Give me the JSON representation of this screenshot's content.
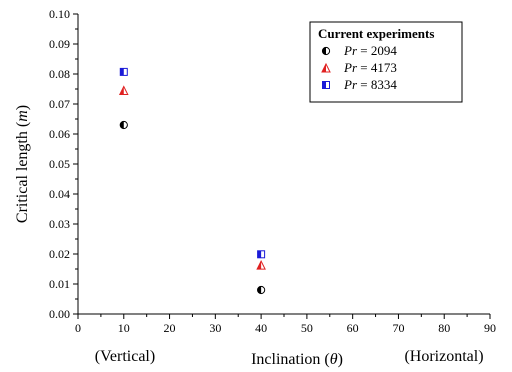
{
  "chart_data": {
    "type": "scatter",
    "x_axis": {
      "label_text": "Inclination (",
      "label_symbol": "θ",
      "label_close": ")",
      "min": 0,
      "max": 90,
      "ticks": [
        0,
        10,
        20,
        30,
        40,
        50,
        60,
        70,
        80,
        90
      ],
      "annotations": [
        "(Vertical)",
        "(Horizontal)"
      ]
    },
    "y_axis": {
      "label_text": "Critical length (",
      "label_symbol": "m",
      "label_close": ")",
      "min": 0,
      "max": 0.1,
      "ticks": [
        "0.00",
        "0.01",
        "0.02",
        "0.03",
        "0.04",
        "0.05",
        "0.06",
        "0.07",
        "0.08",
        "0.09",
        "0.10"
      ]
    },
    "grid": false,
    "legend": {
      "position": "top-right",
      "title": "Current experiments"
    },
    "series": [
      {
        "name_symbol": "Pr",
        "name_value": " = 2094",
        "marker": "half-circle",
        "color": "#000000",
        "points": [
          {
            "x": 10,
            "y": 0.063
          },
          {
            "x": 40,
            "y": 0.008
          }
        ]
      },
      {
        "name_symbol": "Pr",
        "name_value": " = 4173",
        "marker": "half-triangle",
        "color": "#e02020",
        "points": [
          {
            "x": 10,
            "y": 0.0745
          },
          {
            "x": 40,
            "y": 0.0163
          }
        ]
      },
      {
        "name_symbol": "Pr",
        "name_value": " = 8334",
        "marker": "half-square",
        "color": "#1a1ad8",
        "points": [
          {
            "x": 10,
            "y": 0.0807
          },
          {
            "x": 40,
            "y": 0.0199
          }
        ]
      }
    ]
  }
}
